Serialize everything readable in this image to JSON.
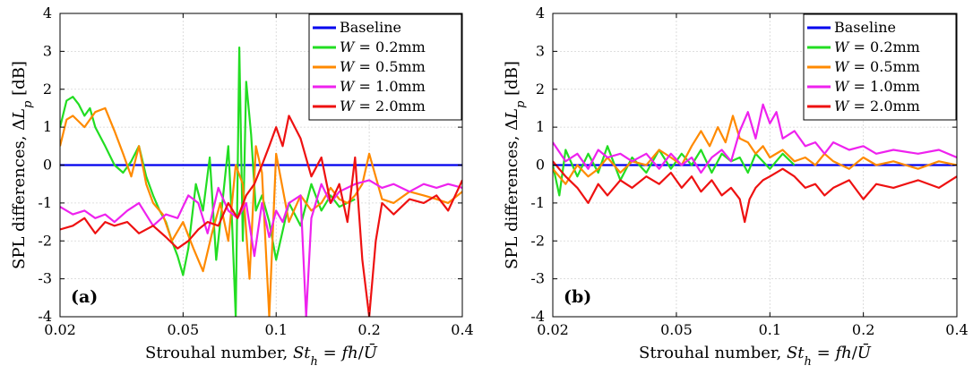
{
  "chart_data": [
    {
      "type": "line",
      "panel_label": "(a)",
      "xlabel": "Strouhal number, St_h = fh/Ū",
      "ylabel": "SPL differences, ΔL_p [dB]",
      "x_scale": "log",
      "xlim": [
        0.02,
        0.4
      ],
      "ylim": [
        -4,
        4
      ],
      "x_ticks": [
        0.02,
        0.05,
        0.1,
        0.2,
        0.4
      ],
      "x_tick_labels": [
        "0.02",
        "0.05",
        "0.1",
        "0.2",
        "0.4"
      ],
      "y_ticks": [
        -4,
        -3,
        -2,
        -1,
        0,
        1,
        2,
        3,
        4
      ],
      "y_tick_labels": [
        "-4",
        "-3",
        "-2",
        "-1",
        "0",
        "1",
        "2",
        "3",
        "4"
      ],
      "grid": true,
      "legend_position": "top-right",
      "series": [
        {
          "name": "Baseline",
          "color": "#0000ee",
          "x": [
            0.02,
            0.4
          ],
          "y": [
            0,
            0
          ]
        },
        {
          "name": "W = 0.2mm",
          "color": "#22dd22",
          "x": [
            0.02,
            0.021,
            0.022,
            0.023,
            0.024,
            0.025,
            0.026,
            0.028,
            0.03,
            0.032,
            0.034,
            0.036,
            0.038,
            0.04,
            0.042,
            0.044,
            0.046,
            0.048,
            0.05,
            0.052,
            0.055,
            0.058,
            0.061,
            0.064,
            0.067,
            0.07,
            0.072,
            0.074,
            0.076,
            0.078,
            0.08,
            0.083,
            0.086,
            0.09,
            0.095,
            0.1,
            0.11,
            0.12,
            0.13,
            0.14,
            0.15,
            0.16,
            0.18
          ],
          "y": [
            1.0,
            1.7,
            1.8,
            1.6,
            1.3,
            1.5,
            1.0,
            0.5,
            0.0,
            -0.2,
            0.1,
            0.5,
            -0.3,
            -0.8,
            -1.2,
            -1.5,
            -2.0,
            -2.4,
            -2.9,
            -2.2,
            -0.5,
            -1.2,
            0.2,
            -2.5,
            -1.0,
            0.5,
            -1.5,
            -4.0,
            3.1,
            -2.0,
            2.2,
            0.8,
            -1.2,
            -0.8,
            -1.5,
            -2.5,
            -1.0,
            -1.6,
            -0.5,
            -1.2,
            -0.8,
            -1.1,
            -0.9
          ]
        },
        {
          "name": "W = 0.5mm",
          "color": "#ff8a00",
          "x": [
            0.02,
            0.021,
            0.022,
            0.024,
            0.026,
            0.028,
            0.03,
            0.032,
            0.034,
            0.036,
            0.038,
            0.04,
            0.043,
            0.046,
            0.05,
            0.054,
            0.058,
            0.062,
            0.066,
            0.07,
            0.074,
            0.078,
            0.082,
            0.086,
            0.09,
            0.095,
            0.1,
            0.11,
            0.12,
            0.13,
            0.14,
            0.15,
            0.16,
            0.17,
            0.18,
            0.19,
            0.2,
            0.22,
            0.24,
            0.27,
            0.3,
            0.33,
            0.36,
            0.4
          ],
          "y": [
            0.5,
            1.2,
            1.3,
            1.0,
            1.4,
            1.5,
            0.9,
            0.3,
            -0.3,
            0.5,
            -0.5,
            -1.0,
            -1.3,
            -2.0,
            -1.5,
            -2.2,
            -2.8,
            -1.8,
            -1.0,
            -2.0,
            0.0,
            -0.5,
            -3.0,
            0.5,
            -0.2,
            -4.0,
            0.3,
            -1.5,
            -0.8,
            -1.2,
            -1.0,
            -0.6,
            -0.9,
            -1.0,
            -0.8,
            -0.5,
            0.3,
            -0.9,
            -1.0,
            -0.7,
            -0.8,
            -0.9,
            -1.0,
            -0.7
          ]
        },
        {
          "name": "W = 1.0mm",
          "color": "#ee22ee",
          "x": [
            0.02,
            0.022,
            0.024,
            0.026,
            0.028,
            0.03,
            0.033,
            0.036,
            0.04,
            0.044,
            0.048,
            0.052,
            0.056,
            0.06,
            0.065,
            0.07,
            0.075,
            0.08,
            0.085,
            0.09,
            0.095,
            0.1,
            0.105,
            0.11,
            0.12,
            0.125,
            0.13,
            0.14,
            0.15,
            0.16,
            0.18,
            0.2,
            0.22,
            0.24,
            0.27,
            0.3,
            0.33,
            0.36,
            0.4
          ],
          "y": [
            -1.1,
            -1.3,
            -1.2,
            -1.4,
            -1.3,
            -1.5,
            -1.2,
            -1.0,
            -1.6,
            -1.3,
            -1.4,
            -0.8,
            -1.0,
            -1.8,
            -0.6,
            -1.2,
            -1.4,
            -1.0,
            -2.4,
            -1.0,
            -1.9,
            -1.2,
            -1.5,
            -1.0,
            -0.8,
            -4.0,
            -1.4,
            -0.5,
            -1.0,
            -0.7,
            -0.5,
            -0.4,
            -0.6,
            -0.5,
            -0.7,
            -0.5,
            -0.6,
            -0.5,
            -0.6
          ]
        },
        {
          "name": "W = 2.0mm",
          "color": "#ee1111",
          "x": [
            0.02,
            0.022,
            0.024,
            0.026,
            0.028,
            0.03,
            0.033,
            0.036,
            0.04,
            0.044,
            0.048,
            0.052,
            0.056,
            0.06,
            0.065,
            0.07,
            0.075,
            0.08,
            0.085,
            0.09,
            0.095,
            0.1,
            0.105,
            0.11,
            0.12,
            0.13,
            0.14,
            0.15,
            0.16,
            0.17,
            0.18,
            0.19,
            0.2,
            0.21,
            0.22,
            0.24,
            0.27,
            0.3,
            0.33,
            0.36,
            0.4
          ],
          "y": [
            -1.7,
            -1.6,
            -1.4,
            -1.8,
            -1.5,
            -1.6,
            -1.5,
            -1.8,
            -1.6,
            -1.9,
            -2.2,
            -2.0,
            -1.7,
            -1.5,
            -1.6,
            -1.0,
            -1.4,
            -0.8,
            -0.5,
            0.0,
            0.5,
            1.0,
            0.5,
            1.3,
            0.7,
            -0.3,
            0.2,
            -1.0,
            -0.5,
            -1.5,
            0.2,
            -2.5,
            -4.0,
            -2.0,
            -1.0,
            -1.3,
            -0.9,
            -1.0,
            -0.8,
            -1.2,
            -0.4
          ]
        }
      ]
    },
    {
      "type": "line",
      "panel_label": "(b)",
      "xlabel": "Strouhal number, St_h = fh/Ū",
      "ylabel": "SPL differences, ΔL_p [dB]",
      "x_scale": "log",
      "xlim": [
        0.02,
        0.4
      ],
      "ylim": [
        -4,
        4
      ],
      "x_ticks": [
        0.02,
        0.05,
        0.1,
        0.2,
        0.4
      ],
      "x_tick_labels": [
        "0.02",
        "0.05",
        "0.1",
        "0.2",
        "0.4"
      ],
      "y_ticks": [
        -4,
        -3,
        -2,
        -1,
        0,
        1,
        2,
        3,
        4
      ],
      "y_tick_labels": [
        "-4",
        "-3",
        "-2",
        "-1",
        "0",
        "1",
        "2",
        "3",
        "4"
      ],
      "grid": true,
      "legend_position": "top-right",
      "series": [
        {
          "name": "Baseline",
          "color": "#0000ee",
          "x": [
            0.02,
            0.4
          ],
          "y": [
            0,
            0
          ]
        },
        {
          "name": "W = 0.2mm",
          "color": "#22dd22",
          "x": [
            0.02,
            0.021,
            0.022,
            0.024,
            0.026,
            0.028,
            0.03,
            0.033,
            0.036,
            0.04,
            0.044,
            0.048,
            0.052,
            0.056,
            0.06,
            0.065,
            0.07,
            0.075,
            0.08,
            0.085,
            0.09,
            0.1,
            0.11,
            0.12
          ],
          "y": [
            0.0,
            -0.8,
            0.4,
            -0.3,
            0.3,
            -0.2,
            0.5,
            -0.4,
            0.2,
            -0.2,
            0.4,
            -0.1,
            0.3,
            0.0,
            0.4,
            -0.2,
            0.3,
            0.1,
            0.2,
            -0.2,
            0.3,
            -0.1,
            0.3,
            0.0
          ]
        },
        {
          "name": "W = 0.5mm",
          "color": "#ff8a00",
          "x": [
            0.02,
            0.022,
            0.024,
            0.026,
            0.028,
            0.03,
            0.033,
            0.036,
            0.04,
            0.044,
            0.048,
            0.052,
            0.056,
            0.06,
            0.064,
            0.068,
            0.072,
            0.076,
            0.08,
            0.085,
            0.09,
            0.095,
            0.1,
            0.11,
            0.12,
            0.13,
            0.14,
            0.15,
            0.16,
            0.18,
            0.2,
            0.22,
            0.25,
            0.3,
            0.35,
            0.4
          ],
          "y": [
            -0.1,
            -0.5,
            0.0,
            -0.3,
            -0.1,
            0.2,
            -0.2,
            0.1,
            0.0,
            0.4,
            0.2,
            0.0,
            0.5,
            0.9,
            0.5,
            1.0,
            0.6,
            1.3,
            0.7,
            0.6,
            0.3,
            0.5,
            0.2,
            0.4,
            0.1,
            0.2,
            0.0,
            0.3,
            0.1,
            -0.1,
            0.2,
            0.0,
            0.1,
            -0.1,
            0.1,
            0.0
          ]
        },
        {
          "name": "W = 1.0mm",
          "color": "#ee22ee",
          "x": [
            0.02,
            0.022,
            0.024,
            0.026,
            0.028,
            0.03,
            0.033,
            0.036,
            0.04,
            0.044,
            0.048,
            0.052,
            0.056,
            0.06,
            0.065,
            0.07,
            0.075,
            0.08,
            0.085,
            0.09,
            0.095,
            0.1,
            0.105,
            0.11,
            0.12,
            0.13,
            0.14,
            0.15,
            0.16,
            0.18,
            0.2,
            0.22,
            0.25,
            0.3,
            0.35,
            0.4
          ],
          "y": [
            0.6,
            0.1,
            0.3,
            -0.1,
            0.4,
            0.2,
            0.3,
            0.1,
            0.3,
            -0.1,
            0.3,
            0.0,
            0.2,
            -0.2,
            0.2,
            0.4,
            0.1,
            0.9,
            1.4,
            0.7,
            1.6,
            1.1,
            1.4,
            0.7,
            0.9,
            0.5,
            0.6,
            0.3,
            0.6,
            0.4,
            0.5,
            0.3,
            0.4,
            0.3,
            0.4,
            0.2
          ]
        },
        {
          "name": "W = 2.0mm",
          "color": "#ee1111",
          "x": [
            0.02,
            0.022,
            0.024,
            0.026,
            0.028,
            0.03,
            0.033,
            0.036,
            0.04,
            0.044,
            0.048,
            0.052,
            0.056,
            0.06,
            0.065,
            0.07,
            0.075,
            0.08,
            0.083,
            0.086,
            0.09,
            0.095,
            0.1,
            0.11,
            0.12,
            0.13,
            0.14,
            0.15,
            0.16,
            0.18,
            0.2,
            0.22,
            0.25,
            0.3,
            0.35,
            0.4
          ],
          "y": [
            0.1,
            -0.3,
            -0.6,
            -1.0,
            -0.5,
            -0.8,
            -0.4,
            -0.6,
            -0.3,
            -0.5,
            -0.2,
            -0.6,
            -0.3,
            -0.7,
            -0.4,
            -0.8,
            -0.6,
            -0.9,
            -1.5,
            -0.9,
            -0.6,
            -0.4,
            -0.3,
            -0.1,
            -0.3,
            -0.6,
            -0.5,
            -0.8,
            -0.6,
            -0.4,
            -0.9,
            -0.5,
            -0.6,
            -0.4,
            -0.6,
            -0.3
          ]
        }
      ]
    }
  ]
}
